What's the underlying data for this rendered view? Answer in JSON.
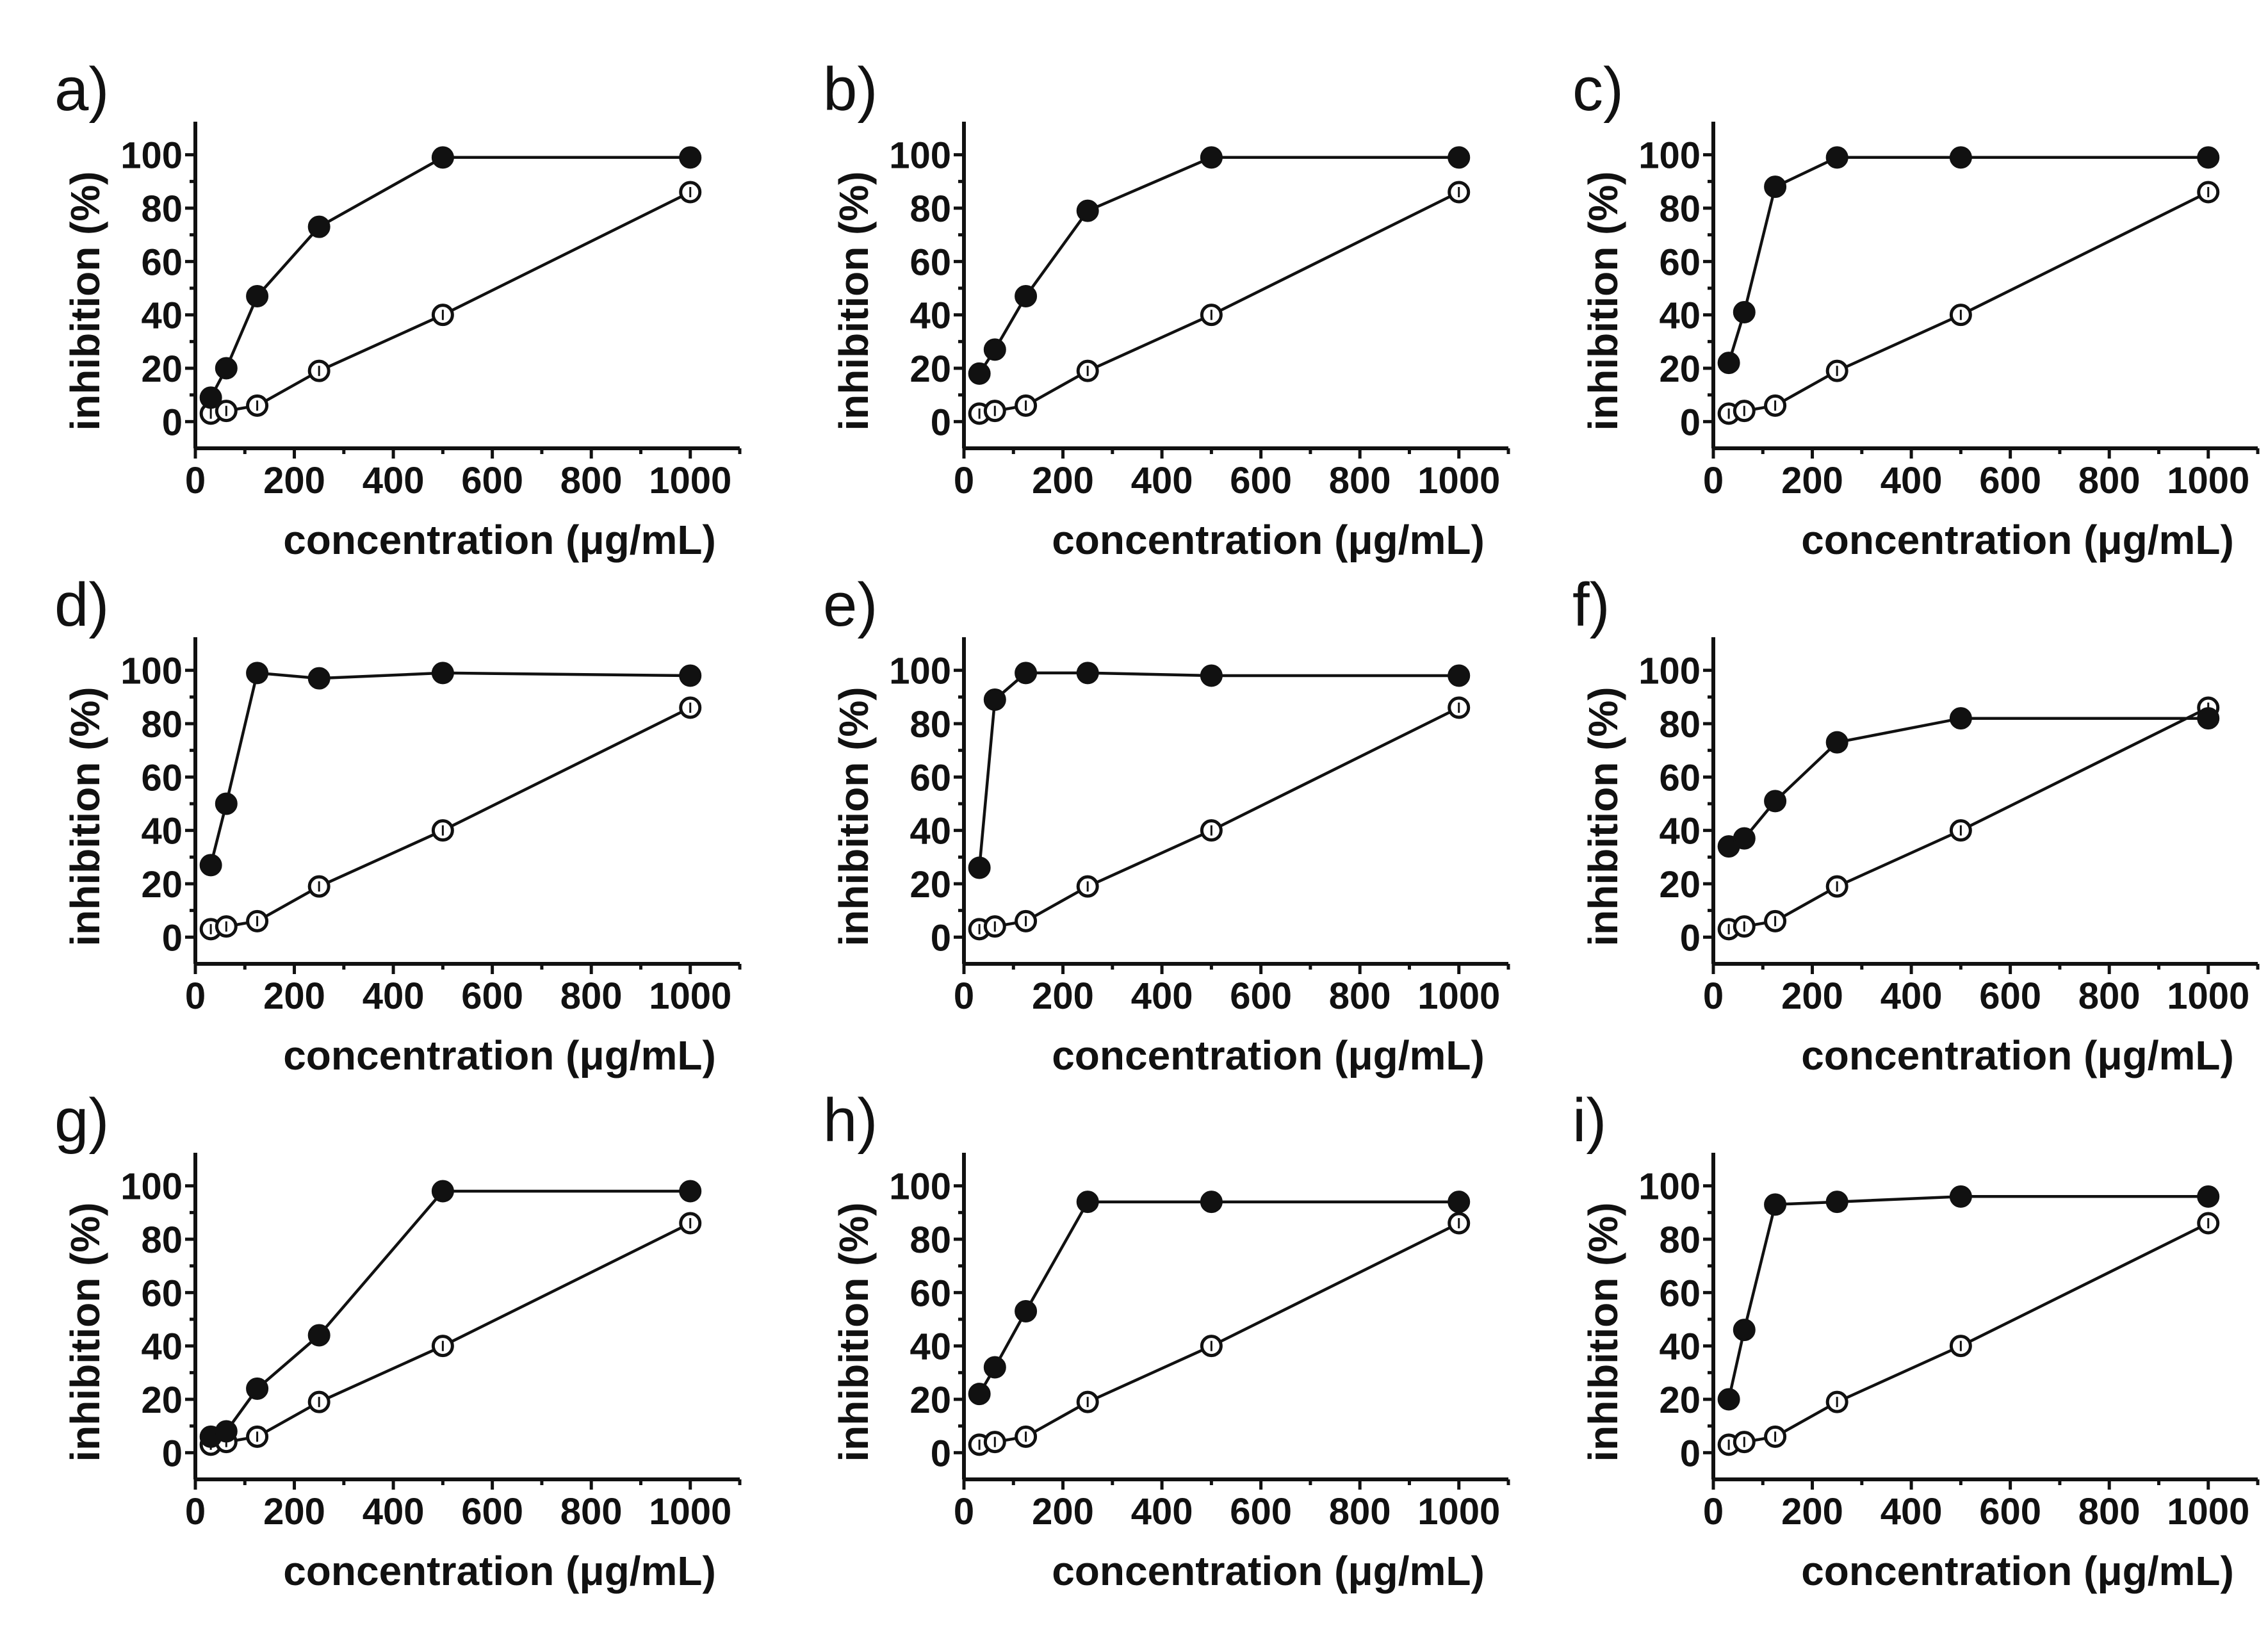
{
  "chart_data": [
    {
      "type": "line",
      "panel": "a)",
      "xlabel": "concentration (μg/mL)",
      "ylabel": "inhibition (%)",
      "xlim": [
        0,
        1100
      ],
      "ylim": [
        -10,
        110
      ],
      "xticks": [
        0,
        200,
        400,
        600,
        800,
        1000
      ],
      "yticks": [
        0,
        20,
        40,
        60,
        80,
        100
      ],
      "series": [
        {
          "name": "filled",
          "marker": "filled-circle",
          "x": [
            31.25,
            62.5,
            125,
            250,
            500,
            1000
          ],
          "y": [
            9,
            20,
            47,
            73,
            99,
            99
          ]
        },
        {
          "name": "open",
          "marker": "open-circle",
          "x": [
            31.25,
            62.5,
            125,
            250,
            500,
            1000
          ],
          "y": [
            3,
            4,
            6,
            19,
            40,
            86
          ]
        }
      ]
    },
    {
      "type": "line",
      "panel": "b)",
      "xlabel": "concentration (μg/mL)",
      "ylabel": "inhibition (%)",
      "xlim": [
        0,
        1100
      ],
      "ylim": [
        -10,
        110
      ],
      "xticks": [
        0,
        200,
        400,
        600,
        800,
        1000
      ],
      "yticks": [
        0,
        20,
        40,
        60,
        80,
        100
      ],
      "series": [
        {
          "name": "filled",
          "marker": "filled-circle",
          "x": [
            31.25,
            62.5,
            125,
            250,
            500,
            1000
          ],
          "y": [
            18,
            27,
            47,
            79,
            99,
            99
          ]
        },
        {
          "name": "open",
          "marker": "open-circle",
          "x": [
            31.25,
            62.5,
            125,
            250,
            500,
            1000
          ],
          "y": [
            3,
            4,
            6,
            19,
            40,
            86
          ]
        }
      ]
    },
    {
      "type": "line",
      "panel": "c)",
      "xlabel": "concentration (μg/mL)",
      "ylabel": "inhibition (%)",
      "xlim": [
        0,
        1100
      ],
      "ylim": [
        -10,
        110
      ],
      "xticks": [
        0,
        200,
        400,
        600,
        800,
        1000
      ],
      "yticks": [
        0,
        20,
        40,
        60,
        80,
        100
      ],
      "series": [
        {
          "name": "filled",
          "marker": "filled-circle",
          "x": [
            31.25,
            62.5,
            125,
            250,
            500,
            1000
          ],
          "y": [
            22,
            41,
            88,
            99,
            99,
            99
          ]
        },
        {
          "name": "open",
          "marker": "open-circle",
          "x": [
            31.25,
            62.5,
            125,
            250,
            500,
            1000
          ],
          "y": [
            3,
            4,
            6,
            19,
            40,
            86
          ]
        }
      ]
    },
    {
      "type": "line",
      "panel": "d)",
      "xlabel": "concentration (μg/mL)",
      "ylabel": "inhibition (%)",
      "xlim": [
        0,
        1100
      ],
      "ylim": [
        -10,
        110
      ],
      "xticks": [
        0,
        200,
        400,
        600,
        800,
        1000
      ],
      "yticks": [
        0,
        20,
        40,
        60,
        80,
        100
      ],
      "series": [
        {
          "name": "filled",
          "marker": "filled-circle",
          "x": [
            31.25,
            62.5,
            125,
            250,
            500,
            1000
          ],
          "y": [
            27,
            50,
            99,
            97,
            99,
            98
          ]
        },
        {
          "name": "open",
          "marker": "open-circle",
          "x": [
            31.25,
            62.5,
            125,
            250,
            500,
            1000
          ],
          "y": [
            3,
            4,
            6,
            19,
            40,
            86
          ]
        }
      ]
    },
    {
      "type": "line",
      "panel": "e)",
      "xlabel": "concentration (μg/mL)",
      "ylabel": "inhibition (%)",
      "xlim": [
        0,
        1100
      ],
      "ylim": [
        -10,
        110
      ],
      "xticks": [
        0,
        200,
        400,
        600,
        800,
        1000
      ],
      "yticks": [
        0,
        20,
        40,
        60,
        80,
        100
      ],
      "series": [
        {
          "name": "filled",
          "marker": "filled-circle",
          "x": [
            31.25,
            62.5,
            125,
            250,
            500,
            1000
          ],
          "y": [
            26,
            89,
            99,
            99,
            98,
            98
          ]
        },
        {
          "name": "open",
          "marker": "open-circle",
          "x": [
            31.25,
            62.5,
            125,
            250,
            500,
            1000
          ],
          "y": [
            3,
            4,
            6,
            19,
            40,
            86
          ]
        }
      ]
    },
    {
      "type": "line",
      "panel": "f)",
      "xlabel": "concentration (μg/mL)",
      "ylabel": "inhibition (%)",
      "xlim": [
        0,
        1100
      ],
      "ylim": [
        -10,
        110
      ],
      "xticks": [
        0,
        200,
        400,
        600,
        800,
        1000
      ],
      "yticks": [
        0,
        20,
        40,
        60,
        80,
        100
      ],
      "series": [
        {
          "name": "filled",
          "marker": "filled-circle",
          "x": [
            31.25,
            62.5,
            125,
            250,
            500,
            1000
          ],
          "y": [
            34,
            37,
            51,
            73,
            82,
            82
          ]
        },
        {
          "name": "open",
          "marker": "open-circle",
          "x": [
            31.25,
            62.5,
            125,
            250,
            500,
            1000
          ],
          "y": [
            3,
            4,
            6,
            19,
            40,
            86
          ]
        }
      ]
    },
    {
      "type": "line",
      "panel": "g)",
      "xlabel": "concentration (μg/mL)",
      "ylabel": "inhibition (%)",
      "xlim": [
        0,
        1100
      ],
      "ylim": [
        -10,
        110
      ],
      "xticks": [
        0,
        200,
        400,
        600,
        800,
        1000
      ],
      "yticks": [
        0,
        20,
        40,
        60,
        80,
        100
      ],
      "series": [
        {
          "name": "filled",
          "marker": "filled-circle",
          "x": [
            31.25,
            62.5,
            125,
            250,
            500,
            1000
          ],
          "y": [
            6,
            8,
            24,
            44,
            98,
            98
          ]
        },
        {
          "name": "open",
          "marker": "open-circle",
          "x": [
            31.25,
            62.5,
            125,
            250,
            500,
            1000
          ],
          "y": [
            3,
            4,
            6,
            19,
            40,
            86
          ]
        }
      ]
    },
    {
      "type": "line",
      "panel": "h)",
      "xlabel": "concentration (μg/mL)",
      "ylabel": "inhibition (%)",
      "xlim": [
        0,
        1100
      ],
      "ylim": [
        -10,
        110
      ],
      "xticks": [
        0,
        200,
        400,
        600,
        800,
        1000
      ],
      "yticks": [
        0,
        20,
        40,
        60,
        80,
        100
      ],
      "series": [
        {
          "name": "filled",
          "marker": "filled-circle",
          "x": [
            31.25,
            62.5,
            125,
            250,
            500,
            1000
          ],
          "y": [
            22,
            32,
            53,
            94,
            94,
            94
          ]
        },
        {
          "name": "open",
          "marker": "open-circle",
          "x": [
            31.25,
            62.5,
            125,
            250,
            500,
            1000
          ],
          "y": [
            3,
            4,
            6,
            19,
            40,
            86
          ]
        }
      ]
    },
    {
      "type": "line",
      "panel": "i)",
      "xlabel": "concentration (μg/mL)",
      "ylabel": "inhibition (%)",
      "xlim": [
        0,
        1100
      ],
      "ylim": [
        -10,
        110
      ],
      "xticks": [
        0,
        200,
        400,
        600,
        800,
        1000
      ],
      "yticks": [
        0,
        20,
        40,
        60,
        80,
        100
      ],
      "series": [
        {
          "name": "filled",
          "marker": "filled-circle",
          "x": [
            31.25,
            62.5,
            125,
            250,
            500,
            1000
          ],
          "y": [
            20,
            46,
            93,
            94,
            96,
            96
          ]
        },
        {
          "name": "open",
          "marker": "open-circle",
          "x": [
            31.25,
            62.5,
            125,
            250,
            500,
            1000
          ],
          "y": [
            3,
            4,
            6,
            19,
            40,
            86
          ]
        }
      ]
    }
  ]
}
